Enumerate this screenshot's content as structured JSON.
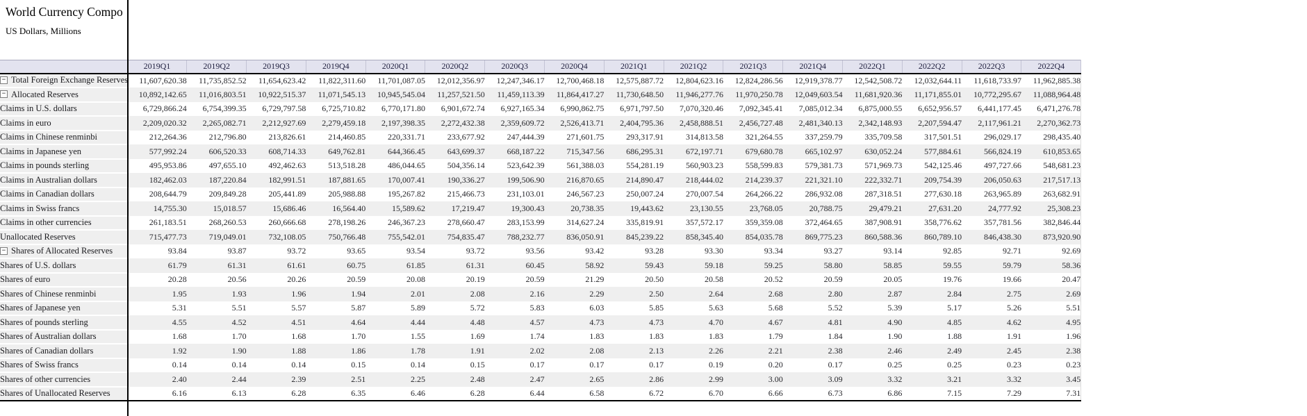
{
  "window": {
    "title": "World Currency Compo",
    "subtitle": "US Dollars, Millions"
  },
  "colors": {
    "header_bg": "#e3e3ef",
    "row_stripe_bg": "#efefef",
    "label_column_bg": "#efefef",
    "pane_divider": "#000000",
    "header_text": "#20203f"
  },
  "icons": {
    "collapse_glyph": "−"
  },
  "table": {
    "columns": [
      "2019Q1",
      "2019Q2",
      "2019Q3",
      "2019Q4",
      "2020Q1",
      "2020Q2",
      "2020Q3",
      "2020Q4",
      "2021Q1",
      "2021Q2",
      "2021Q3",
      "2021Q4",
      "2022Q1",
      "2022Q2",
      "2022Q3",
      "2022Q4"
    ],
    "rows": [
      {
        "label": "Total Foreign Exchange Reserves",
        "level": 0,
        "box": true,
        "values": [
          "11,607,620.38",
          "11,735,852.52",
          "11,654,623.42",
          "11,822,311.60",
          "11,701,087.05",
          "12,012,356.97",
          "12,247,346.17",
          "12,700,468.18",
          "12,575,887.72",
          "12,804,623.16",
          "12,824,286.56",
          "12,919,378.77",
          "12,542,508.72",
          "12,032,644.11",
          "11,618,733.97",
          "11,962,885.38"
        ]
      },
      {
        "label": "Allocated Reserves",
        "level": 1,
        "box": true,
        "values": [
          "10,892,142.65",
          "11,016,803.51",
          "10,922,515.37",
          "11,071,545.13",
          "10,945,545.04",
          "11,257,521.50",
          "11,459,113.39",
          "11,864,417.27",
          "11,730,648.50",
          "11,946,277.76",
          "11,970,250.78",
          "12,049,603.54",
          "11,681,920.36",
          "11,171,855.01",
          "10,772,295.67",
          "11,088,964.48"
        ]
      },
      {
        "label": "Claims in U.S. dollars",
        "level": 2,
        "box": false,
        "values": [
          "6,729,866.24",
          "6,754,399.35",
          "6,729,797.58",
          "6,725,710.82",
          "6,770,171.80",
          "6,901,672.74",
          "6,927,165.34",
          "6,990,862.75",
          "6,971,797.50",
          "7,070,320.46",
          "7,092,345.41",
          "7,085,012.34",
          "6,875,000.55",
          "6,652,956.57",
          "6,441,177.45",
          "6,471,276.78"
        ]
      },
      {
        "label": "Claims in euro",
        "level": 2,
        "box": false,
        "values": [
          "2,209,020.32",
          "2,265,082.71",
          "2,212,927.69",
          "2,279,459.18",
          "2,197,398.35",
          "2,272,432.38",
          "2,359,609.72",
          "2,526,413.71",
          "2,404,795.36",
          "2,458,888.51",
          "2,456,727.48",
          "2,481,340.13",
          "2,342,148.93",
          "2,207,594.47",
          "2,117,961.21",
          "2,270,362.73"
        ]
      },
      {
        "label": "Claims in Chinese renminbi",
        "level": 2,
        "box": false,
        "values": [
          "212,264.36",
          "212,796.80",
          "213,826.61",
          "214,460.85",
          "220,331.71",
          "233,677.92",
          "247,444.39",
          "271,601.75",
          "293,317.91",
          "314,813.58",
          "321,264.55",
          "337,259.79",
          "335,709.58",
          "317,501.51",
          "296,029.17",
          "298,435.40"
        ]
      },
      {
        "label": "Claims in Japanese yen",
        "level": 2,
        "box": false,
        "values": [
          "577,992.24",
          "606,520.33",
          "608,714.33",
          "649,762.81",
          "644,366.45",
          "643,699.37",
          "668,187.22",
          "715,347.56",
          "686,295.31",
          "672,197.71",
          "679,680.78",
          "665,102.97",
          "630,052.24",
          "577,884.61",
          "566,824.19",
          "610,853.65"
        ]
      },
      {
        "label": "Claims in pounds sterling",
        "level": 2,
        "box": false,
        "values": [
          "495,953.86",
          "497,655.10",
          "492,462.63",
          "513,518.28",
          "486,044.65",
          "504,356.14",
          "523,642.39",
          "561,388.03",
          "554,281.19",
          "560,903.23",
          "558,599.83",
          "579,381.73",
          "571,969.73",
          "542,125.46",
          "497,727.66",
          "548,681.23"
        ]
      },
      {
        "label": "Claims in Australian dollars",
        "level": 2,
        "box": false,
        "values": [
          "182,462.03",
          "187,220.84",
          "182,991.51",
          "187,881.65",
          "170,007.41",
          "190,336.27",
          "199,506.90",
          "216,870.65",
          "214,890.47",
          "218,444.02",
          "214,239.37",
          "221,321.10",
          "222,332.71",
          "209,754.39",
          "206,050.63",
          "217,517.13"
        ]
      },
      {
        "label": "Claims in Canadian dollars",
        "level": 2,
        "box": false,
        "values": [
          "208,644.79",
          "209,849.28",
          "205,441.89",
          "205,988.88",
          "195,267.82",
          "215,466.73",
          "231,103.01",
          "246,567.23",
          "250,007.24",
          "270,007.54",
          "264,266.22",
          "286,932.08",
          "287,318.51",
          "277,630.18",
          "263,965.89",
          "263,682.91"
        ]
      },
      {
        "label": "Claims in Swiss francs",
        "level": 2,
        "box": false,
        "values": [
          "14,755.30",
          "15,018.57",
          "15,686.46",
          "16,564.40",
          "15,589.62",
          "17,219.47",
          "19,300.43",
          "20,738.35",
          "19,443.62",
          "23,130.55",
          "23,768.05",
          "20,788.75",
          "29,479.21",
          "27,631.20",
          "24,777.92",
          "25,308.23"
        ]
      },
      {
        "label": "Claims in other currencies",
        "level": 2,
        "box": false,
        "values": [
          "261,183.51",
          "268,260.53",
          "260,666.68",
          "278,198.26",
          "246,367.23",
          "278,660.47",
          "283,153.99",
          "314,627.24",
          "335,819.91",
          "357,572.17",
          "359,359.08",
          "372,464.65",
          "387,908.91",
          "358,776.62",
          "357,781.56",
          "382,846.44"
        ]
      },
      {
        "label": "Unallocated Reserves",
        "level": 1,
        "box": false,
        "values": [
          "715,477.73",
          "719,049.01",
          "732,108.05",
          "750,766.48",
          "755,542.01",
          "754,835.47",
          "788,232.77",
          "836,050.91",
          "845,239.22",
          "858,345.40",
          "854,035.78",
          "869,775.23",
          "860,588.36",
          "860,789.10",
          "846,438.30",
          "873,920.90"
        ]
      },
      {
        "label": "Shares of Allocated Reserves",
        "level": 1,
        "box": true,
        "values": [
          "93.84",
          "93.87",
          "93.72",
          "93.65",
          "93.54",
          "93.72",
          "93.56",
          "93.42",
          "93.28",
          "93.30",
          "93.34",
          "93.27",
          "93.14",
          "92.85",
          "92.71",
          "92.69"
        ]
      },
      {
        "label": "Shares of U.S. dollars",
        "level": 2,
        "box": false,
        "values": [
          "61.79",
          "61.31",
          "61.61",
          "60.75",
          "61.85",
          "61.31",
          "60.45",
          "58.92",
          "59.43",
          "59.18",
          "59.25",
          "58.80",
          "58.85",
          "59.55",
          "59.79",
          "58.36"
        ]
      },
      {
        "label": "Shares of euro",
        "level": 2,
        "box": false,
        "values": [
          "20.28",
          "20.56",
          "20.26",
          "20.59",
          "20.08",
          "20.19",
          "20.59",
          "21.29",
          "20.50",
          "20.58",
          "20.52",
          "20.59",
          "20.05",
          "19.76",
          "19.66",
          "20.47"
        ]
      },
      {
        "label": "Shares of Chinese renminbi",
        "level": 2,
        "box": false,
        "values": [
          "1.95",
          "1.93",
          "1.96",
          "1.94",
          "2.01",
          "2.08",
          "2.16",
          "2.29",
          "2.50",
          "2.64",
          "2.68",
          "2.80",
          "2.87",
          "2.84",
          "2.75",
          "2.69"
        ]
      },
      {
        "label": "Shares of Japanese yen",
        "level": 2,
        "box": false,
        "values": [
          "5.31",
          "5.51",
          "5.57",
          "5.87",
          "5.89",
          "5.72",
          "5.83",
          "6.03",
          "5.85",
          "5.63",
          "5.68",
          "5.52",
          "5.39",
          "5.17",
          "5.26",
          "5.51"
        ]
      },
      {
        "label": "Shares of pounds sterling",
        "level": 2,
        "box": false,
        "values": [
          "4.55",
          "4.52",
          "4.51",
          "4.64",
          "4.44",
          "4.48",
          "4.57",
          "4.73",
          "4.73",
          "4.70",
          "4.67",
          "4.81",
          "4.90",
          "4.85",
          "4.62",
          "4.95"
        ]
      },
      {
        "label": "Shares of Australian dollars",
        "level": 2,
        "box": false,
        "values": [
          "1.68",
          "1.70",
          "1.68",
          "1.70",
          "1.55",
          "1.69",
          "1.74",
          "1.83",
          "1.83",
          "1.83",
          "1.79",
          "1.84",
          "1.90",
          "1.88",
          "1.91",
          "1.96"
        ]
      },
      {
        "label": "Shares of Canadian dollars",
        "level": 2,
        "box": false,
        "values": [
          "1.92",
          "1.90",
          "1.88",
          "1.86",
          "1.78",
          "1.91",
          "2.02",
          "2.08",
          "2.13",
          "2.26",
          "2.21",
          "2.38",
          "2.46",
          "2.49",
          "2.45",
          "2.38"
        ]
      },
      {
        "label": "Shares of Swiss francs",
        "level": 2,
        "box": false,
        "values": [
          "0.14",
          "0.14",
          "0.14",
          "0.15",
          "0.14",
          "0.15",
          "0.17",
          "0.17",
          "0.17",
          "0.19",
          "0.20",
          "0.17",
          "0.25",
          "0.25",
          "0.23",
          "0.23"
        ]
      },
      {
        "label": "Shares of other currencies",
        "level": 2,
        "box": false,
        "values": [
          "2.40",
          "2.44",
          "2.39",
          "2.51",
          "2.25",
          "2.48",
          "2.47",
          "2.65",
          "2.86",
          "2.99",
          "3.00",
          "3.09",
          "3.32",
          "3.21",
          "3.32",
          "3.45"
        ]
      },
      {
        "label": "Shares of Unallocated Reserves",
        "level": 1,
        "box": false,
        "values": [
          "6.16",
          "6.13",
          "6.28",
          "6.35",
          "6.46",
          "6.28",
          "6.44",
          "6.58",
          "6.72",
          "6.70",
          "6.66",
          "6.73",
          "6.86",
          "7.15",
          "7.29",
          "7.31"
        ]
      }
    ]
  }
}
